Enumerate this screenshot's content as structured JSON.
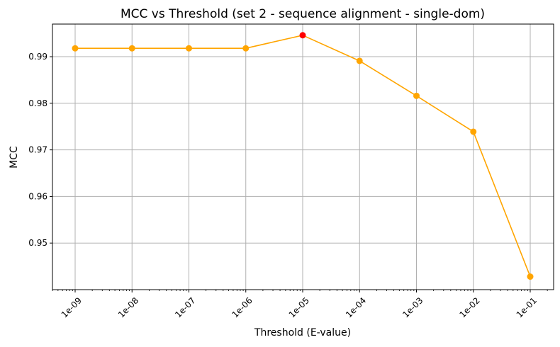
{
  "chart_data": {
    "type": "line",
    "title": "MCC vs Threshold (set 2 - sequence alignment - single-dom)",
    "xlabel": "Threshold (E-value)",
    "ylabel": "MCC",
    "x_scale": "log",
    "x": [
      1e-09,
      1e-08,
      1e-07,
      1e-06,
      1e-05,
      0.0001,
      0.001,
      0.01,
      0.1
    ],
    "x_tick_labels": [
      "1e-09",
      "1e-08",
      "1e-07",
      "1e-06",
      "1e-05",
      "1e-04",
      "1e-03",
      "1e-02",
      "1e-01"
    ],
    "y_ticks": [
      "0.95",
      "0.96",
      "0.97",
      "0.98",
      "0.99"
    ],
    "y_tick_values": [
      0.95,
      0.96,
      0.97,
      0.98,
      0.99
    ],
    "series": [
      {
        "values": [
          0.9918,
          0.9918,
          0.9918,
          0.9918,
          0.9946,
          0.9891,
          0.9816,
          0.9739,
          0.9428
        ],
        "color": "#ffa500"
      }
    ],
    "highlight": {
      "index": 4,
      "color": "#ff0000"
    },
    "ylim": [
      0.94,
      0.997
    ],
    "grid": true,
    "legend": "none"
  }
}
